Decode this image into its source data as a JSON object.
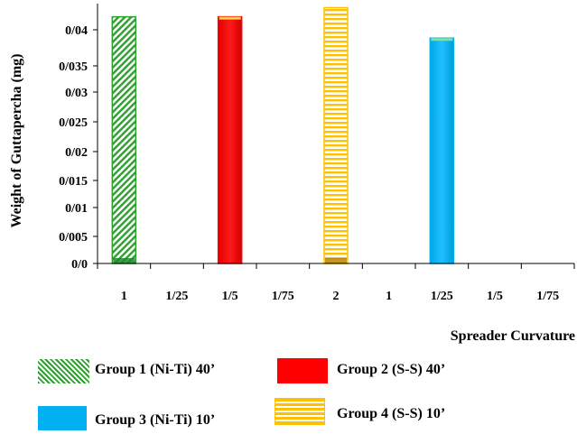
{
  "chart_data": {
    "type": "bar",
    "categories": [
      "1",
      "1/25",
      "1/5",
      "1/75",
      "2",
      "1",
      "1/25",
      "1/5",
      "1/75"
    ],
    "values": [
      0.0405,
      null,
      0.0405,
      null,
      0.042,
      null,
      0.037,
      null,
      null
    ],
    "bar_colors": [
      "#2ca02c",
      null,
      "#ff0000",
      null,
      "#ffc000",
      null,
      "#00b0f0",
      null,
      null
    ],
    "bar_patterns": [
      "diagonal",
      null,
      "solid",
      null,
      "horizontal",
      null,
      "solid",
      null,
      null
    ],
    "y_tick_labels": [
      "0/0",
      "0/005",
      "0/01",
      "0/015",
      "0/02",
      "0/025",
      "0/03",
      "0/035",
      "0/04"
    ],
    "y_tick_values": [
      0,
      0.005,
      0.01,
      0.015,
      0.02,
      0.025,
      0.03,
      0.035,
      0.04
    ],
    "ylim": [
      0,
      0.042
    ],
    "ylabel": "Weight of Guttapercha (mg)",
    "xlabel": "Spreader Curvature",
    "grid": false,
    "legend_position": "bottom",
    "legend": [
      {
        "label": "Group 1 (Ni-Ti) 40’",
        "color": "#2ca02c",
        "pattern": "diagonal"
      },
      {
        "label": "Group 2 (S-S) 40’",
        "color": "#ff0000",
        "pattern": "solid"
      },
      {
        "label": "Group 3 (Ni-Ti) 10’",
        "color": "#00b0f0",
        "pattern": "solid"
      },
      {
        "label": "Group 4 (S-S) 10’",
        "color": "#ffc000",
        "pattern": "horizontal"
      }
    ]
  }
}
